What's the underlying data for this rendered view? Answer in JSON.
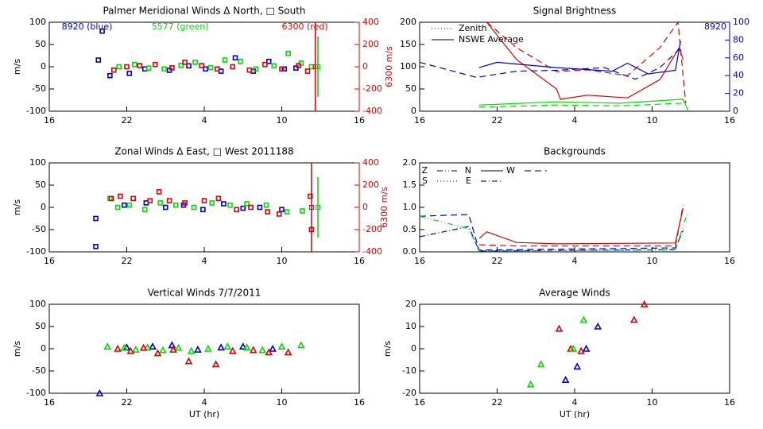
{
  "chart_data": [
    {
      "type": "scatter",
      "title": "Palmer Meridional Winds Δ North, □ South",
      "ylabel": "m/s",
      "y2label": "6300 m/s",
      "y2color": "#dd0000",
      "xlim": [
        16,
        40
      ],
      "xticks": [
        16,
        22,
        {
          "value": 28,
          "label": "4"
        },
        {
          "value": 34,
          "label": "10"
        },
        {
          "value": 40,
          "label": "16"
        }
      ],
      "ylim": [
        -100,
        100
      ],
      "yticks": [
        -100,
        -50,
        0,
        50,
        100
      ],
      "y2lim": [
        -400,
        400
      ],
      "y2ticks": [
        -400,
        -200,
        0,
        200,
        400
      ],
      "series": [
        {
          "name": "8920 (blue)",
          "color": "#0000cc",
          "marker": "square",
          "x": [
            19.8,
            20.1,
            20.7,
            22.2,
            23.4,
            25.3,
            26.8,
            28.1,
            29.3,
            30.4,
            31.8,
            33.0,
            34.2,
            35.1
          ],
          "values": [
            15,
            80,
            -20,
            -15,
            -5,
            -8,
            2,
            -5,
            -10,
            20,
            -10,
            12,
            -5,
            -3
          ]
        },
        {
          "name": "5577 (green)",
          "color": "#00dd00",
          "marker": "square",
          "x": [
            21.4,
            22.6,
            23.7,
            24.9,
            26.2,
            27.3,
            28.5,
            29.6,
            30.8,
            32.0,
            33.4,
            34.5,
            35.5,
            36.3
          ],
          "values": [
            0,
            5,
            -3,
            -5,
            3,
            10,
            -2,
            15,
            12,
            -5,
            2,
            30,
            8,
            0
          ]
        },
        {
          "name": "6300 (red)",
          "color": "#dd0000",
          "marker": "square",
          "axis": "y2",
          "x": [
            21.0,
            22.0,
            23.0,
            24.2,
            25.5,
            26.5,
            27.8,
            29.0,
            30.2,
            31.5,
            32.7,
            34.0,
            35.3,
            36.0
          ],
          "values": [
            -30,
            0,
            10,
            20,
            -10,
            40,
            10,
            -20,
            0,
            -30,
            20,
            -20,
            10,
            -40
          ]
        }
      ],
      "error_bars": [
        {
          "color": "#dd0000",
          "axis": "y2",
          "x": [
            36.6
          ],
          "values": [
            0
          ],
          "errors": [
            400
          ]
        },
        {
          "color": "#00dd00",
          "x": [
            36.8
          ],
          "values": [
            0
          ],
          "errors": [
            68
          ]
        }
      ]
    },
    {
      "type": "scatter",
      "title": "Zonal Winds Δ East, □ West 2011188",
      "ylabel": "m/s",
      "y2label": "6300 m/s",
      "y2color": "#dd0000",
      "xlim": [
        16,
        40
      ],
      "xticks": [
        16,
        22,
        {
          "value": 28,
          "label": "4"
        },
        {
          "value": 34,
          "label": "10"
        },
        {
          "value": 40,
          "label": "16"
        }
      ],
      "ylim": [
        -100,
        100
      ],
      "yticks": [
        -100,
        -50,
        0,
        50,
        100
      ],
      "y2lim": [
        -400,
        400
      ],
      "y2ticks": [
        -400,
        -200,
        0,
        200,
        400
      ],
      "series": [
        {
          "color": "#0000cc",
          "marker": "square",
          "x": [
            19.6,
            19.6,
            21.8,
            23.5,
            25.0,
            26.4,
            27.9,
            29.5,
            31.0,
            32.3,
            34.0
          ],
          "values": [
            -25,
            -88,
            5,
            10,
            0,
            5,
            -5,
            8,
            -2,
            0,
            -5
          ]
        },
        {
          "color": "#00dd00",
          "marker": "square",
          "x": [
            20.7,
            21.3,
            22.2,
            23.4,
            24.6,
            25.8,
            27.2,
            28.6,
            30.0,
            31.3,
            32.8,
            34.4,
            35.6
          ],
          "values": [
            20,
            0,
            5,
            -5,
            10,
            5,
            0,
            10,
            5,
            8,
            5,
            -10,
            -8
          ]
        },
        {
          "color": "#dd0000",
          "marker": "square",
          "axis": "y2",
          "x": [
            20.8,
            21.5,
            22.5,
            23.8,
            24.5,
            25.3,
            26.5,
            28.0,
            29.1,
            30.5,
            31.6,
            32.9,
            33.8,
            36.2,
            36.3
          ],
          "values": [
            80,
            100,
            80,
            60,
            140,
            60,
            40,
            60,
            80,
            -20,
            0,
            -40,
            -60,
            100,
            -200
          ]
        }
      ],
      "error_bars": [
        {
          "color": "#dd0000",
          "axis": "y2",
          "x": [
            36.3
          ],
          "values": [
            0
          ],
          "errors": [
            400
          ]
        },
        {
          "color": "#00dd00",
          "x": [
            36.8
          ],
          "values": [
            0
          ],
          "errors": [
            68
          ]
        }
      ]
    },
    {
      "type": "scatter",
      "title": "Vertical Winds 7/7/2011",
      "ylabel": "m/s",
      "xlabel": "UT (hr)",
      "xlim": [
        16,
        40
      ],
      "xticks": [
        16,
        22,
        {
          "value": 28,
          "label": "4"
        },
        {
          "value": 34,
          "label": "10"
        },
        {
          "value": 40,
          "label": "16"
        }
      ],
      "ylim": [
        -100,
        100
      ],
      "yticks": [
        -100,
        -50,
        0,
        50,
        100
      ],
      "series": [
        {
          "color": "#0000cc",
          "marker": "triangle",
          "x": [
            19.9,
            22.0,
            24.0,
            25.5,
            27.5,
            29.3,
            31.0,
            33.3
          ],
          "values": [
            -100,
            3,
            5,
            8,
            -2,
            3,
            5,
            0
          ]
        },
        {
          "color": "#00dd00",
          "marker": "triangle",
          "x": [
            20.5,
            21.8,
            22.7,
            23.6,
            24.8,
            26.0,
            27.0,
            28.3,
            29.8,
            31.3,
            32.5,
            34.0,
            35.5
          ],
          "values": [
            5,
            2,
            -2,
            3,
            -3,
            2,
            -5,
            0,
            5,
            3,
            -3,
            5,
            8
          ]
        },
        {
          "color": "#dd0000",
          "marker": "triangle",
          "x": [
            21.3,
            22.3,
            23.3,
            24.4,
            25.6,
            26.8,
            28.9,
            30.2,
            31.8,
            33.0,
            34.5
          ],
          "values": [
            0,
            -5,
            2,
            -10,
            -2,
            -28,
            -35,
            -5,
            -3,
            -8,
            -8
          ]
        }
      ]
    },
    {
      "type": "line",
      "title": "Signal Brightness",
      "y2color": "#0000cc",
      "xlim": [
        16,
        40
      ],
      "xticks": [
        16,
        22,
        {
          "value": 28,
          "label": "4"
        },
        {
          "value": 34,
          "label": "10"
        },
        {
          "value": 40,
          "label": "16"
        }
      ],
      "ylim": [
        0,
        200
      ],
      "yticks": [
        0,
        50,
        100,
        150,
        200
      ],
      "y2lim": [
        0,
        100
      ],
      "y2ticks": [
        0,
        20,
        40,
        60,
        80,
        100
      ],
      "legend": [
        {
          "label": "Zenith",
          "dash": "dotted"
        },
        {
          "label": "NSWE Average",
          "dash": "solid"
        }
      ],
      "annotations": [
        {
          "text": "8920",
          "color": "#0000cc"
        }
      ],
      "series": [
        {
          "color": "#dd0000",
          "dash": "solid",
          "x": [
            21.2,
            23.5,
            26.6,
            26.9,
            29.0,
            32.1,
            34.6,
            36.1,
            36.4
          ],
          "values": [
            200,
            116,
            50,
            27,
            36,
            30,
            71,
            143,
            116
          ]
        },
        {
          "color": "#dd0000",
          "dash": "dashed",
          "x": [
            21.2,
            23.5,
            26.6,
            29.0,
            32.1,
            34.6,
            36.0,
            36.6
          ],
          "values": [
            200,
            143,
            89,
            93,
            80,
            143,
            200,
            18
          ]
        },
        {
          "color": "#00dd00",
          "dash": "solid",
          "x": [
            20.6,
            26.6,
            31.5,
            36.4,
            36.8
          ],
          "values": [
            14,
            21,
            18,
            27,
            0
          ]
        },
        {
          "color": "#00dd00",
          "dash": "dashed",
          "x": [
            20.6,
            26.6,
            31.5,
            36.4
          ],
          "values": [
            9,
            14,
            12,
            18
          ]
        },
        {
          "color": "#0000cc",
          "dash": "solid",
          "axis": "y2",
          "x": [
            20.6,
            22.0,
            26.6,
            30.9,
            32.1,
            33.7,
            35.8,
            36.2
          ],
          "values": [
            49,
            55,
            49,
            45,
            54,
            42,
            46,
            79
          ]
        },
        {
          "color": "#0000cc",
          "dash": "dashed",
          "axis": "y2",
          "x": [
            16,
            20.4,
            23.5,
            26.6,
            30.3,
            32.7,
            34.6,
            36.2
          ],
          "values": [
            55,
            38,
            45,
            46,
            49,
            36,
            49,
            71
          ]
        }
      ]
    },
    {
      "type": "line",
      "title": "Backgrounds",
      "xlim": [
        16,
        40
      ],
      "xticks": [
        16,
        22,
        {
          "value": 28,
          "label": "4"
        },
        {
          "value": 34,
          "label": "10"
        },
        {
          "value": 40,
          "label": "16"
        }
      ],
      "ylim": [
        0,
        2
      ],
      "yticks": [
        {
          "value": 0,
          "label": "0.0"
        },
        0.5,
        {
          "value": 1,
          "label": "1.0"
        },
        1.5,
        {
          "value": 2,
          "label": "2.0"
        }
      ],
      "legend": [
        {
          "label": "Z",
          "dash": "dashdotdot"
        },
        {
          "label": "N",
          "dash": "solid"
        },
        {
          "label": "W",
          "dash": "dashed"
        },
        {
          "label": "S",
          "dash": "dotted"
        },
        {
          "label": "E",
          "dash": "dashdot"
        }
      ],
      "series": [
        {
          "color": "#0000cc",
          "dash": "dashed",
          "x": [
            16,
            19.8,
            20.6,
            35.8,
            36.4
          ],
          "values": [
            0.8,
            0.84,
            0.04,
            0.09,
            0.48
          ]
        },
        {
          "color": "#0000cc",
          "dash": "dashdot",
          "x": [
            16,
            19.8,
            20.6,
            35.8
          ],
          "values": [
            0.34,
            0.57,
            0.02,
            0.05
          ]
        },
        {
          "color": "#dd0000",
          "dash": "solid",
          "x": [
            20.6,
            21.2,
            23.5,
            26.6,
            35.8,
            36.4
          ],
          "values": [
            0.3,
            0.45,
            0.21,
            0.18,
            0.2,
            0.98
          ]
        },
        {
          "color": "#dd0000",
          "dash": "dashed",
          "x": [
            20.6,
            23.5,
            35.8,
            36.4
          ],
          "values": [
            0.16,
            0.13,
            0.13,
            1.05
          ]
        },
        {
          "color": "#00dd00",
          "dash": "dashdotdot",
          "x": [
            16,
            19.8,
            20.6,
            35.8,
            36.7
          ],
          "values": [
            0.8,
            0.52,
            0.02,
            0.04,
            0.84
          ]
        }
      ]
    },
    {
      "type": "scatter",
      "title": "Average Winds",
      "ylabel": "m/s",
      "xlabel": "UT (hr)",
      "xlim": [
        16,
        40
      ],
      "xticks": [
        16,
        22,
        {
          "value": 28,
          "label": "4"
        },
        {
          "value": 34,
          "label": "10"
        },
        {
          "value": 40,
          "label": "16"
        }
      ],
      "ylim": [
        -20,
        20
      ],
      "yticks": [
        -20,
        -10,
        0,
        10,
        20
      ],
      "series": [
        {
          "color": "#dd0000",
          "marker": "triangle",
          "x": [
            26.8,
            27.7,
            28.5,
            32.6,
            33.4
          ],
          "values": [
            9,
            0,
            -1,
            13,
            20
          ]
        },
        {
          "color": "#00dd00",
          "marker": "triangle",
          "x": [
            24.6,
            25.4,
            27.9,
            28.7
          ],
          "values": [
            -16,
            -7,
            0,
            13
          ]
        },
        {
          "color": "#0000cc",
          "marker": "triangle",
          "x": [
            27.3,
            28.2,
            28.9,
            29.8
          ],
          "values": [
            -14,
            -8,
            0,
            10
          ]
        }
      ]
    }
  ]
}
